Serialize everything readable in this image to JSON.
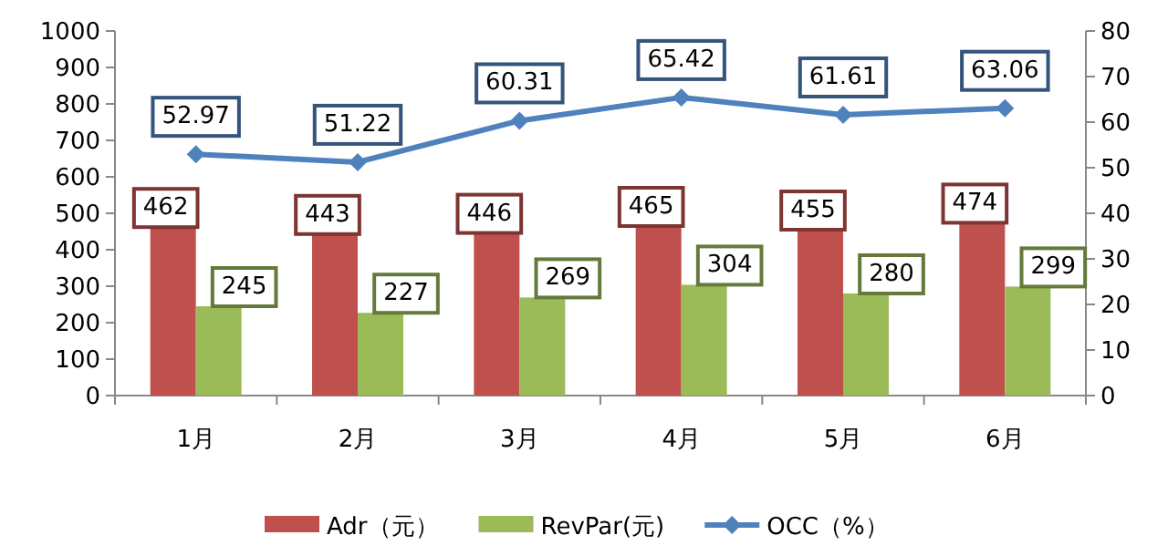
{
  "chart_data": {
    "type": "bar",
    "categories": [
      "1月",
      "2月",
      "3月",
      "4月",
      "5月",
      "6月"
    ],
    "series": [
      {
        "name": "Adr（元）",
        "color": "#c0504d",
        "values": [
          462,
          443,
          446,
          465,
          455,
          474
        ]
      },
      {
        "name": "RevPar(元)",
        "color": "#9bbb59",
        "values": [
          245,
          227,
          269,
          304,
          280,
          299
        ]
      },
      {
        "name": "OCC（%）",
        "type": "line",
        "axis": "y2",
        "color": "#4f81bd",
        "marker": "diamond",
        "values": [
          52.97,
          51.22,
          60.31,
          65.42,
          61.61,
          63.06
        ]
      }
    ],
    "ylim": [
      0,
      1000
    ],
    "yticks": [
      0,
      100,
      200,
      300,
      400,
      500,
      600,
      700,
      800,
      900,
      1000
    ],
    "y2lim": [
      0,
      80
    ],
    "y2ticks": [
      0,
      10,
      20,
      30,
      40,
      50,
      60,
      70,
      80
    ],
    "data_labels": true,
    "legend": "bottom"
  }
}
